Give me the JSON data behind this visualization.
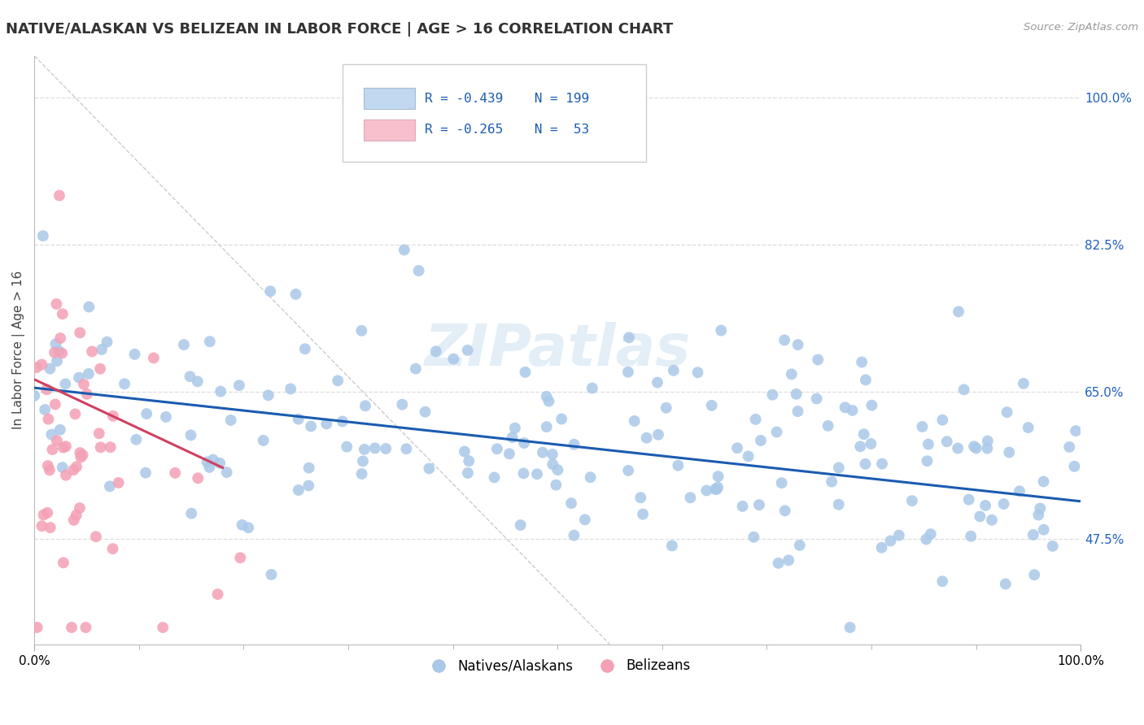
{
  "title": "NATIVE/ALASKAN VS BELIZEAN IN LABOR FORCE | AGE > 16 CORRELATION CHART",
  "source": "Source: ZipAtlas.com",
  "ylabel": "In Labor Force | Age > 16",
  "xlim": [
    0.0,
    1.0
  ],
  "ylim": [
    0.35,
    1.05
  ],
  "x_tick_labels": [
    "0.0%",
    "100.0%"
  ],
  "y_tick_labels_right": [
    "47.5%",
    "65.0%",
    "82.5%",
    "100.0%"
  ],
  "y_ticks_right": [
    0.475,
    0.65,
    0.825,
    1.0
  ],
  "blue_R": -0.439,
  "blue_N": 199,
  "pink_R": -0.265,
  "pink_N": 53,
  "blue_color": "#aac8e8",
  "pink_color": "#f4a0b5",
  "blue_line_color": "#1a5cb0",
  "pink_line_color": "#d04060",
  "diag_color": "#cccccc",
  "background_color": "#ffffff",
  "grid_color": "#dddddd",
  "watermark": "ZIPatlas",
  "legend_label_blue": "Natives/Alaskans",
  "legend_label_pink": "Belizeans",
  "blue_trend_x": [
    0.0,
    1.0
  ],
  "blue_trend_y": [
    0.655,
    0.52
  ],
  "pink_trend_x": [
    0.0,
    0.18
  ],
  "pink_trend_y": [
    0.665,
    0.56
  ]
}
